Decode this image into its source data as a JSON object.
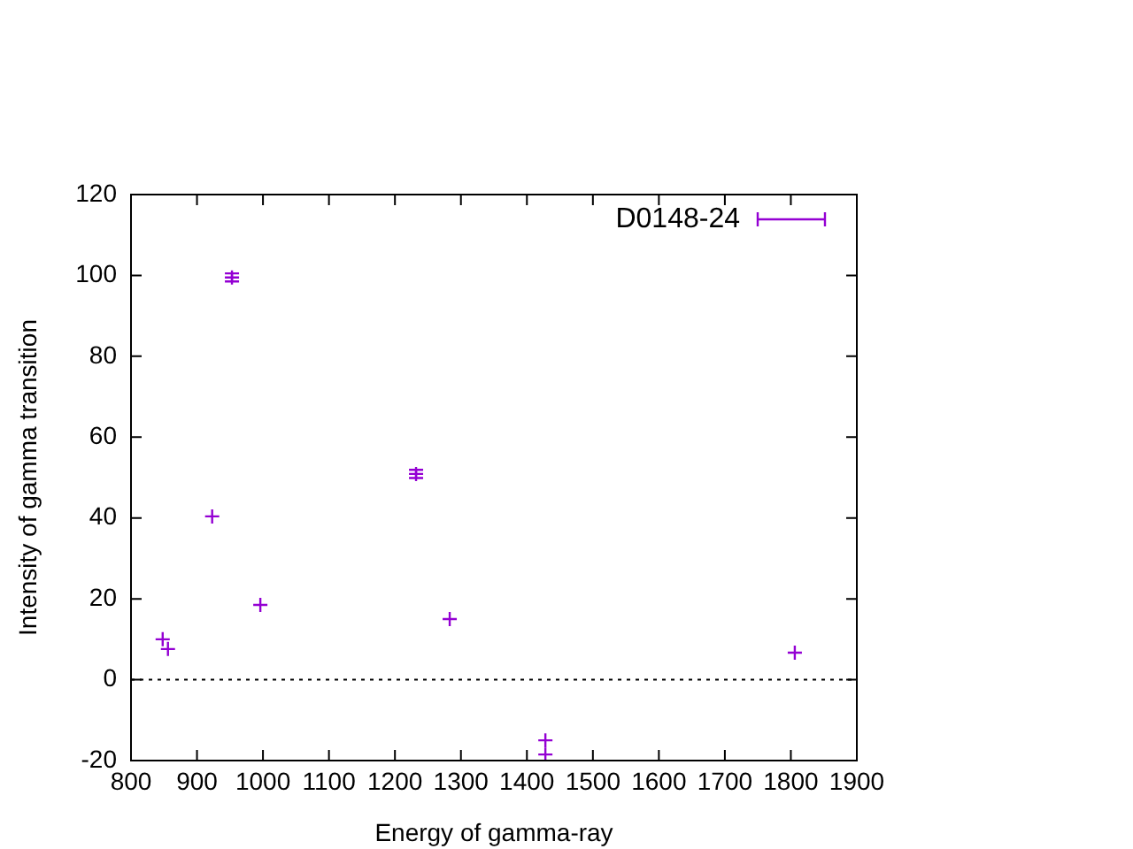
{
  "chart_data": {
    "type": "scatter",
    "xlabel": "Energy of gamma-ray",
    "ylabel": "Intensity of gamma transition",
    "x": [
      848,
      856,
      923,
      953,
      996,
      1232,
      1283,
      1428,
      1428,
      1806
    ],
    "series": [
      {
        "name": "D0148-24",
        "color": "#9400d3",
        "values": [
          10,
          7.6,
          40.4,
          99.5,
          18.5,
          50.9,
          15,
          -15,
          -18.5,
          6.7
        ],
        "errors": [
          null,
          null,
          null,
          1,
          null,
          1,
          null,
          null,
          null,
          null
        ]
      }
    ],
    "xlim": [
      800,
      1900
    ],
    "xticks": [
      800,
      900,
      1000,
      1100,
      1200,
      1300,
      1400,
      1500,
      1600,
      1700,
      1800,
      1900
    ],
    "ylim": [
      -20,
      120
    ],
    "yticks": [
      -20,
      0,
      20,
      40,
      60,
      80,
      100,
      120
    ],
    "ref_lines": [
      {
        "axis": "y",
        "value": 0,
        "color": "#000000",
        "line_style": "dotted"
      }
    ],
    "marker": "cross",
    "grid": false,
    "legend": "top right"
  }
}
